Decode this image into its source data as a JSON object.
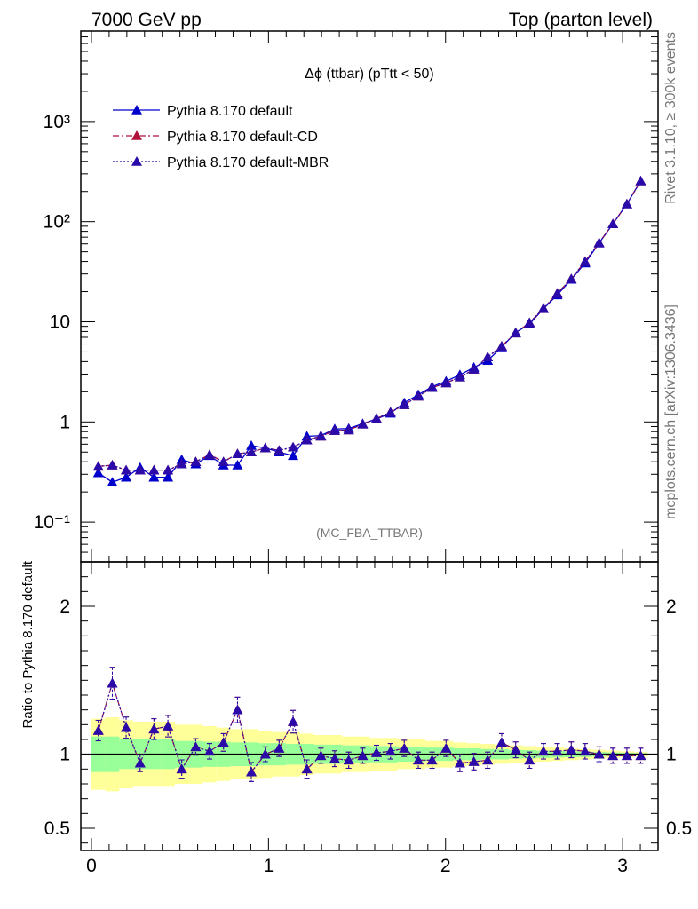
{
  "header": {
    "left": "7000 GeV pp",
    "right": "Top (parton level)"
  },
  "side": {
    "rivet": "Rivet 3.1.10, ≥ 300k events",
    "mcplots": "mcplots.cern.ch [arXiv:1306.3436]"
  },
  "chart_data": [
    {
      "type": "line",
      "title": "Δϕ (ttbar) (pTtt < 50)",
      "watermark": "(MC_FBA_TTBAR)",
      "yscale": "log",
      "xlim": [
        -0.06,
        3.2
      ],
      "ylim": [
        0.04,
        8000
      ],
      "ytick_labels": [
        "10⁻¹",
        "1",
        "10",
        "10²",
        "10³"
      ],
      "legend_position": "top-left",
      "x": [
        0.039,
        0.118,
        0.196,
        0.275,
        0.353,
        0.432,
        0.51,
        0.589,
        0.667,
        0.746,
        0.825,
        0.903,
        0.982,
        1.06,
        1.139,
        1.217,
        1.296,
        1.374,
        1.453,
        1.532,
        1.61,
        1.689,
        1.767,
        1.846,
        1.924,
        2.003,
        2.081,
        2.16,
        2.238,
        2.317,
        2.396,
        2.474,
        2.553,
        2.631,
        2.71,
        2.788,
        2.867,
        2.945,
        3.024,
        3.102
      ],
      "series": [
        {
          "name": "Pythia 8.170 default",
          "color": "#0000cc",
          "marker": "triangle",
          "line": "solid",
          "values": [
            0.31,
            0.25,
            0.28,
            0.35,
            0.28,
            0.28,
            0.42,
            0.38,
            0.46,
            0.37,
            0.37,
            0.58,
            0.55,
            0.5,
            0.46,
            0.72,
            0.73,
            0.85,
            0.86,
            0.96,
            1.07,
            1.22,
            1.55,
            1.87,
            2.25,
            2.55,
            2.95,
            3.5,
            4.1,
            5.6,
            7.8,
            9.5,
            13.5,
            18.5,
            26.5,
            38.5,
            61,
            95,
            150,
            255
          ]
        },
        {
          "name": "Pythia 8.170 default-CD",
          "color": "#b0103a",
          "marker": "triangle",
          "line": "dashdot",
          "values": [
            0.36,
            0.37,
            0.33,
            0.33,
            0.33,
            0.33,
            0.38,
            0.4,
            0.47,
            0.4,
            0.48,
            0.5,
            0.55,
            0.52,
            0.56,
            0.66,
            0.72,
            0.82,
            0.83,
            0.95,
            1.08,
            1.25,
            1.48,
            1.8,
            2.2,
            2.45,
            2.8,
            3.35,
            4.45,
            5.7,
            7.7,
            9.8,
            13.6,
            19.2,
            26.8,
            40,
            61.5,
            95,
            150,
            255
          ]
        },
        {
          "name": "Pythia 8.170 default-MBR",
          "color": "#2a0aa8",
          "marker": "triangle",
          "line": "dotted",
          "values": [
            0.36,
            0.37,
            0.33,
            0.33,
            0.33,
            0.33,
            0.38,
            0.4,
            0.47,
            0.4,
            0.48,
            0.5,
            0.55,
            0.52,
            0.56,
            0.66,
            0.72,
            0.82,
            0.83,
            0.95,
            1.08,
            1.25,
            1.48,
            1.8,
            2.2,
            2.45,
            2.8,
            3.35,
            4.45,
            5.7,
            7.7,
            9.8,
            13.6,
            19.2,
            26.8,
            40,
            61.5,
            95,
            150,
            255
          ]
        }
      ]
    },
    {
      "type": "line",
      "ylabel": "Ratio to Pythia 8.170 default",
      "xlim": [
        -0.06,
        3.2
      ],
      "ylim": [
        0.35,
        2.3
      ],
      "ytick_labels": [
        "0.5",
        "1",
        "2"
      ],
      "xtick_labels": [
        "0",
        "1",
        "2",
        "3"
      ],
      "reference_line": 1,
      "band_colors": {
        "inner": "#99ff99",
        "outer": "#ffff99"
      },
      "band_inner": [
        0.12,
        0.12,
        0.1,
        0.1,
        0.1,
        0.1,
        0.09,
        0.09,
        0.085,
        0.085,
        0.08,
        0.08,
        0.075,
        0.075,
        0.07,
        0.07,
        0.065,
        0.065,
        0.06,
        0.06,
        0.055,
        0.055,
        0.05,
        0.05,
        0.045,
        0.045,
        0.04,
        0.04,
        0.035,
        0.035,
        0.03,
        0.028,
        0.025,
        0.022,
        0.02,
        0.018,
        0.015,
        0.012,
        0.01,
        0.008
      ],
      "band_outer": [
        0.24,
        0.25,
        0.23,
        0.22,
        0.22,
        0.22,
        0.2,
        0.2,
        0.19,
        0.18,
        0.17,
        0.17,
        0.16,
        0.15,
        0.15,
        0.14,
        0.13,
        0.13,
        0.12,
        0.12,
        0.11,
        0.11,
        0.1,
        0.1,
        0.09,
        0.09,
        0.08,
        0.075,
        0.07,
        0.065,
        0.06,
        0.055,
        0.05,
        0.045,
        0.04,
        0.035,
        0.03,
        0.025,
        0.02,
        0.015
      ],
      "series": [
        {
          "name": "Pythia 8.170 default-CD",
          "values": [
            1.16,
            1.48,
            1.18,
            0.94,
            1.17,
            1.19,
            0.9,
            1.05,
            1.02,
            1.08,
            1.3,
            0.88,
            1.0,
            1.04,
            1.22,
            0.9,
            0.99,
            0.97,
            0.96,
            0.99,
            1.01,
            1.02,
            1.04,
            0.96,
            0.96,
            1.04,
            0.94,
            0.95,
            0.96,
            1.08,
            1.03,
            0.96,
            1.02,
            1.02,
            1.03,
            1.02,
            1.0,
            0.99,
            0.99,
            0.99
          ]
        },
        {
          "name": "Pythia 8.170 default-MBR",
          "values": [
            1.16,
            1.48,
            1.18,
            0.94,
            1.17,
            1.19,
            0.9,
            1.05,
            1.02,
            1.08,
            1.3,
            0.88,
            1.0,
            1.04,
            1.22,
            0.9,
            0.99,
            0.97,
            0.96,
            0.99,
            1.01,
            1.02,
            1.04,
            0.96,
            0.96,
            1.04,
            0.94,
            0.95,
            0.96,
            1.08,
            1.03,
            0.96,
            1.02,
            1.02,
            1.03,
            1.02,
            1.0,
            0.99,
            0.99,
            0.99
          ]
        }
      ]
    }
  ]
}
